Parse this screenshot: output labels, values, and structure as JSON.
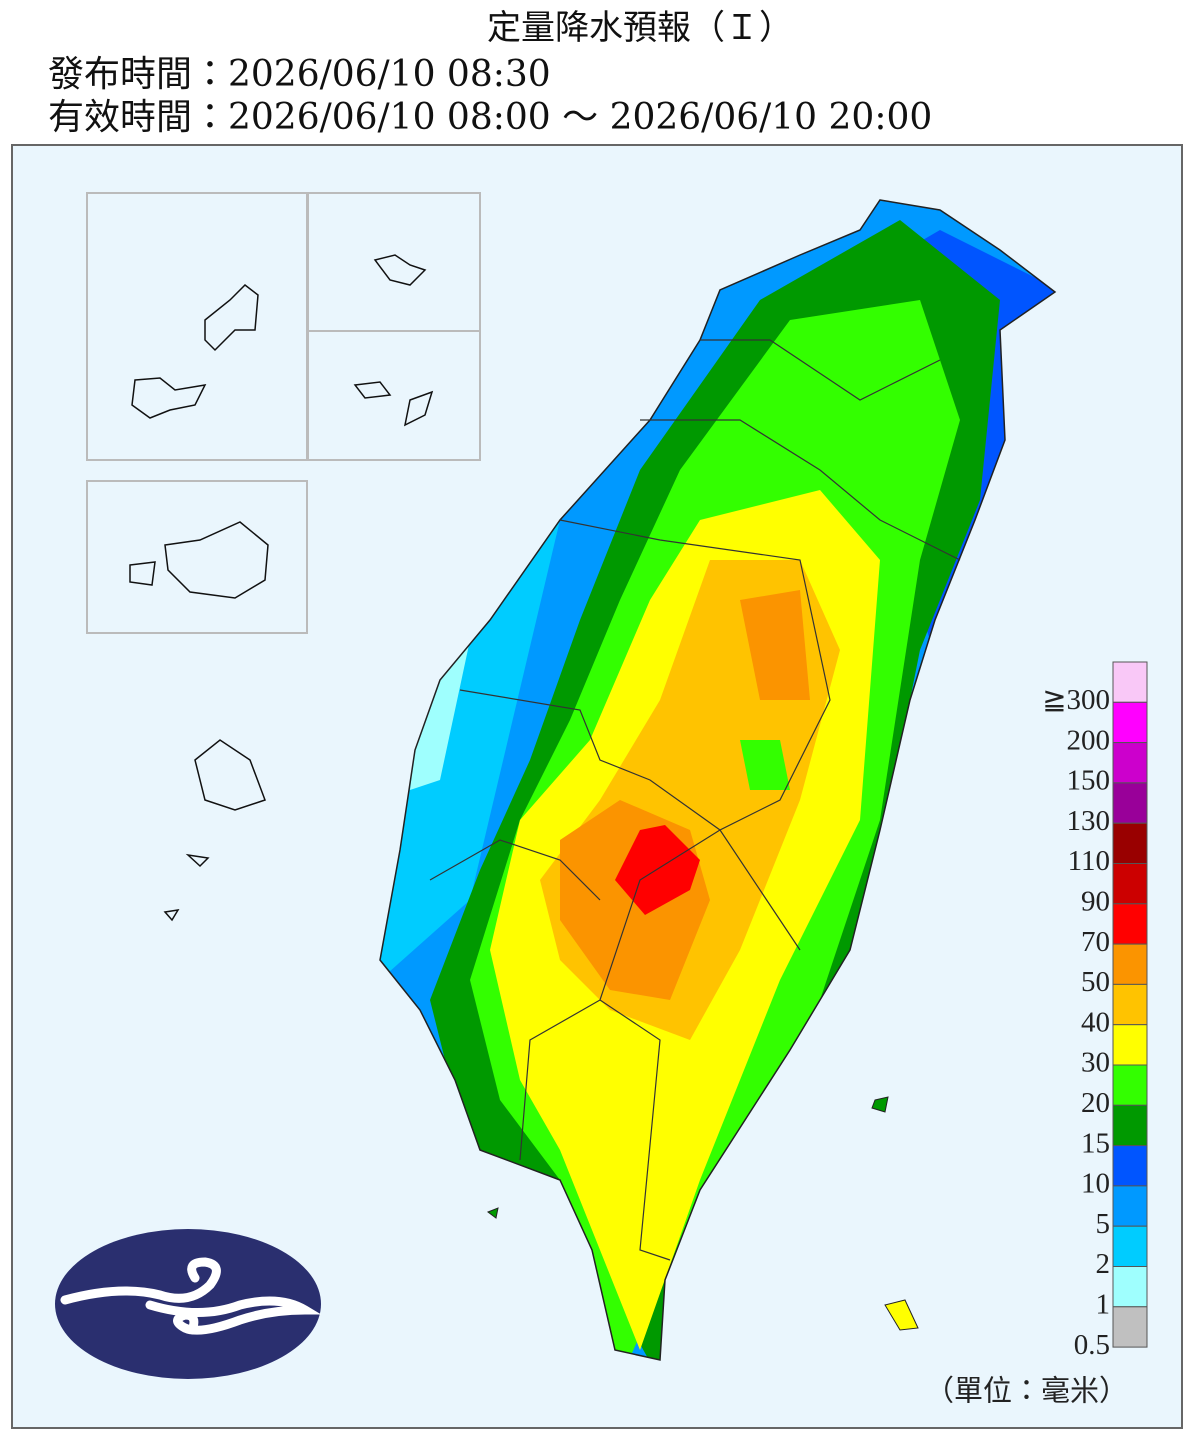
{
  "header": {
    "title": "定量降水預報（Ｉ）",
    "issue_time": "發布時間：2026/06/10 08:30",
    "valid_time": "有效時間：2026/06/10 08:00 ～ 2026/06/10 20:00"
  },
  "legend": {
    "labels": [
      "≧300",
      "200",
      "150",
      "130",
      "110",
      "90",
      "70",
      "50",
      "40",
      "30",
      "20",
      "15",
      "10",
      "5",
      "2",
      "1",
      "0.5"
    ],
    "colors": [
      "#f9c8f7",
      "#ff00ff",
      "#cc00cc",
      "#990099",
      "#990000",
      "#cc0000",
      "#ff0000",
      "#fb9400",
      "#ffc300",
      "#ffff00",
      "#33ff00",
      "#009900",
      "#0055ff",
      "#0099ff",
      "#00ccff",
      "#9ffffe",
      "#c0c0c0"
    ],
    "unit": "（單位：毫米）"
  }
}
